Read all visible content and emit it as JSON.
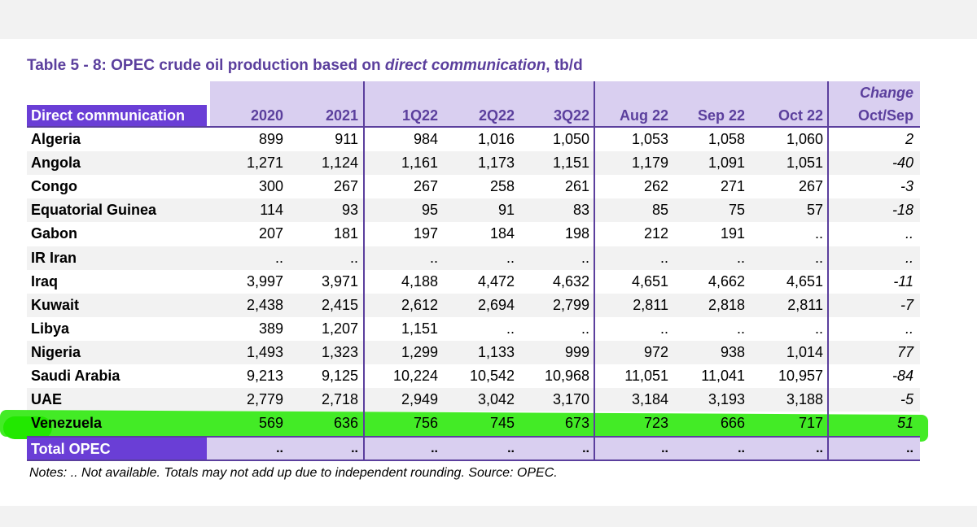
{
  "title": {
    "prefix": "Table 5 - 8: OPEC crude oil production based on ",
    "italic": "direct communication",
    "suffix": ", tb/d"
  },
  "header": {
    "row_label": "Direct communication",
    "columns": [
      "2020",
      "2021",
      "1Q22",
      "2Q22",
      "3Q22",
      "Aug 22",
      "Sep 22",
      "Oct 22",
      "Oct/Sep"
    ],
    "change_label": "Change"
  },
  "rows": [
    {
      "country": "Algeria",
      "values": [
        "899",
        "911",
        "984",
        "1,016",
        "1,050",
        "1,053",
        "1,058",
        "1,060",
        "2"
      ]
    },
    {
      "country": "Angola",
      "values": [
        "1,271",
        "1,124",
        "1,161",
        "1,173",
        "1,151",
        "1,179",
        "1,091",
        "1,051",
        "-40"
      ]
    },
    {
      "country": "Congo",
      "values": [
        "300",
        "267",
        "267",
        "258",
        "261",
        "262",
        "271",
        "267",
        "-3"
      ]
    },
    {
      "country": "Equatorial Guinea",
      "values": [
        "114",
        "93",
        "95",
        "91",
        "83",
        "85",
        "75",
        "57",
        "-18"
      ]
    },
    {
      "country": "Gabon",
      "values": [
        "207",
        "181",
        "197",
        "184",
        "198",
        "212",
        "191",
        "..",
        ".."
      ]
    },
    {
      "country": "IR Iran",
      "values": [
        "..",
        "..",
        "..",
        "..",
        "..",
        "..",
        "..",
        "..",
        ".."
      ]
    },
    {
      "country": "Iraq",
      "values": [
        "3,997",
        "3,971",
        "4,188",
        "4,472",
        "4,632",
        "4,651",
        "4,662",
        "4,651",
        "-11"
      ]
    },
    {
      "country": "Kuwait",
      "values": [
        "2,438",
        "2,415",
        "2,612",
        "2,694",
        "2,799",
        "2,811",
        "2,818",
        "2,811",
        "-7"
      ]
    },
    {
      "country": "Libya",
      "values": [
        "389",
        "1,207",
        "1,151",
        "..",
        "..",
        "..",
        "..",
        "..",
        ".."
      ]
    },
    {
      "country": "Nigeria",
      "values": [
        "1,493",
        "1,323",
        "1,299",
        "1,133",
        "999",
        "972",
        "938",
        "1,014",
        "77"
      ]
    },
    {
      "country": "Saudi Arabia",
      "values": [
        "9,213",
        "9,125",
        "10,224",
        "10,542",
        "10,968",
        "11,051",
        "11,041",
        "10,957",
        "-84"
      ]
    },
    {
      "country": "UAE",
      "values": [
        "2,779",
        "2,718",
        "2,949",
        "3,042",
        "3,170",
        "3,184",
        "3,193",
        "3,188",
        "-5"
      ]
    },
    {
      "country": "Venezuela",
      "values": [
        "569",
        "636",
        "756",
        "745",
        "673",
        "723",
        "666",
        "717",
        "51"
      ]
    }
  ],
  "total": {
    "label": "Total  OPEC",
    "values": [
      "..",
      "..",
      "..",
      "..",
      "..",
      "..",
      "..",
      "..",
      ".."
    ]
  },
  "notes": "Notes:  .. Not available. Totals may not add up due to independent rounding. Source: OPEC.",
  "colors": {
    "accent": "#5b3f9d",
    "label_bg": "#6a3ed6",
    "header_bg": "#d9cff0",
    "highlight": "#22e800"
  }
}
